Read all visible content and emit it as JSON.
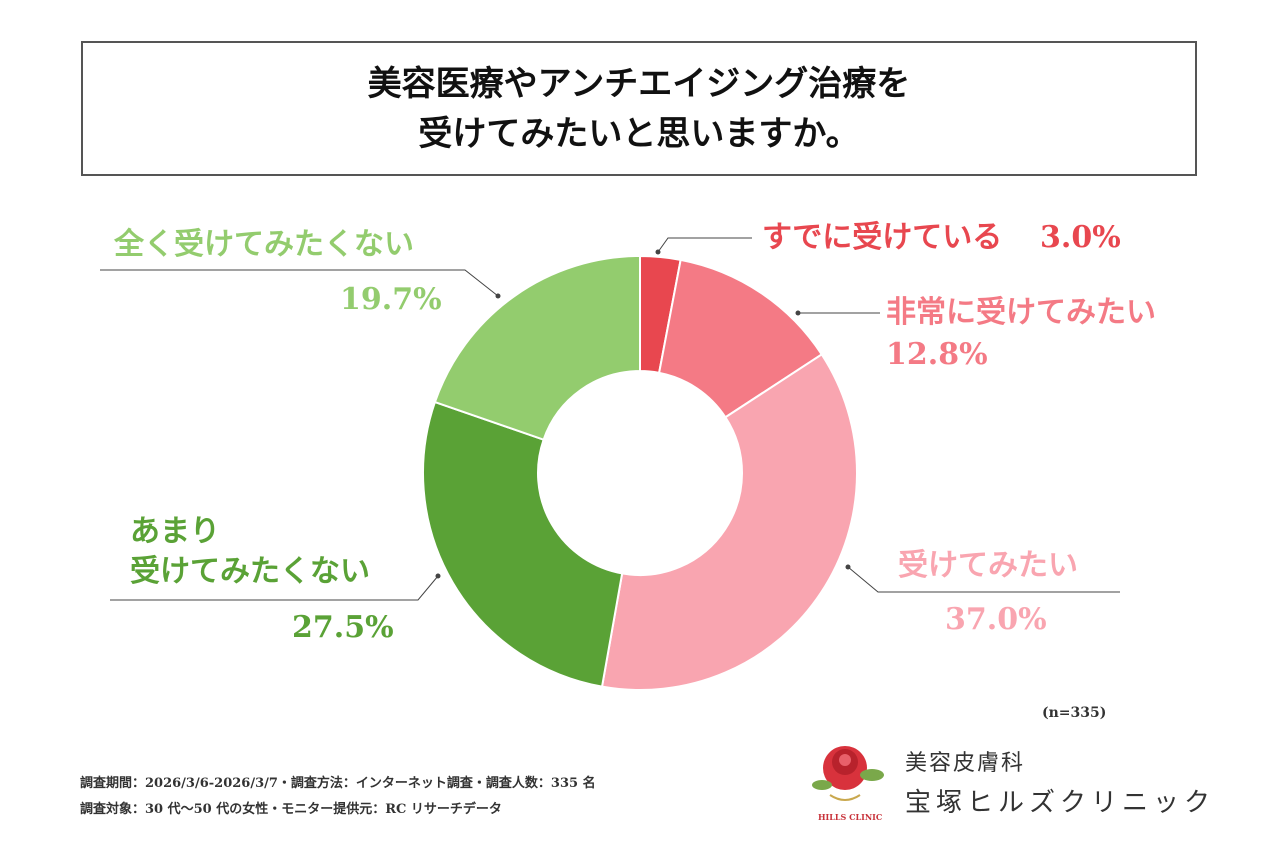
{
  "chart_data": {
    "type": "donut",
    "title": "美容医療やアンチエイジング治療を\n受けてみたいと思いますか。",
    "categories": [
      "すでに受けている",
      "非常に受けてみたい",
      "受けてみたい",
      "あまり\n受けてみたくない",
      "全く受けてみたくない"
    ],
    "values": [
      3.0,
      12.8,
      37.0,
      27.5,
      19.7
    ],
    "value_labels": [
      "3.0%",
      "12.8%",
      "37.0%",
      "27.5%",
      "19.7%"
    ],
    "colors": [
      "#e8474f",
      "#f47a85",
      "#f9a5b0",
      "#5aa236",
      "#93cc6e"
    ],
    "note": "(n=335)",
    "footnotes": [
      "調査期間：2026/3/6-2026/3/7・調査方法：インターネット調査・調査人数：335 名",
      "調査対象：30 代〜50 代の女性・モニター提供元：RC リサーチデータ"
    ]
  },
  "logo": {
    "line1": "美容皮膚科",
    "line2": "宝塚ヒルズクリニック",
    "mark": "HILLS CLINIC"
  }
}
